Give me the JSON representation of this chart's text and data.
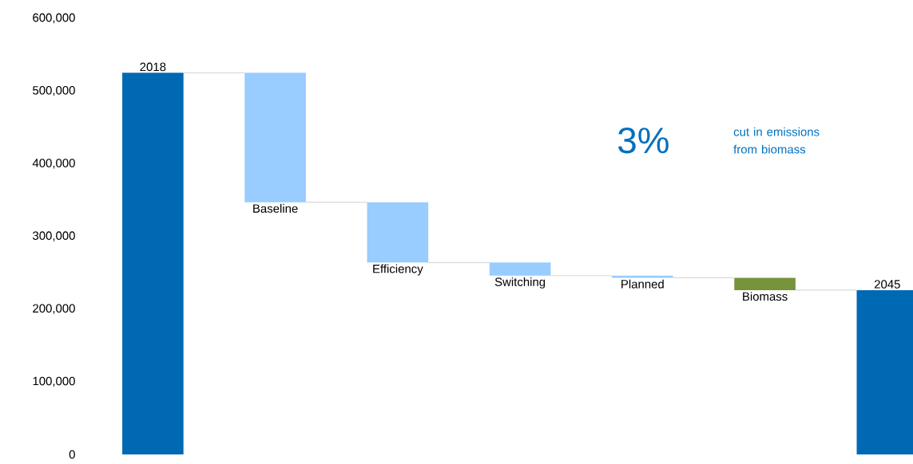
{
  "chart_data": {
    "type": "bar",
    "categories": [
      "2018",
      "Baseline",
      "Efficiency",
      "Switching",
      "Planned",
      "Biomass",
      "2045"
    ],
    "values": [
      525000,
      -178000,
      -83000,
      -18000,
      -3000,
      -17000,
      226000
    ],
    "base": [
      0,
      525000,
      347000,
      264000,
      246000,
      243000,
      0
    ],
    "colors": [
      "#0069b4",
      "#99ccff",
      "#99ccff",
      "#99ccff",
      "#99ccff",
      "#77933c",
      "#0069b4"
    ],
    "ylim": [
      0,
      600000
    ],
    "yticks": [
      0,
      {
        "value": 100000,
        "label": "100,000"
      },
      {
        "value": 200000,
        "label": "200,000"
      },
      {
        "value": 300000,
        "label": "300,000"
      },
      {
        "value": 400000,
        "label": "400,000"
      },
      {
        "value": 500000,
        "label": "500,000"
      },
      {
        "value": 600000,
        "label": "600,000"
      }
    ],
    "tick_labels": "y",
    "annotations": [
      "3%",
      "cut in emissions from biomass"
    ]
  }
}
